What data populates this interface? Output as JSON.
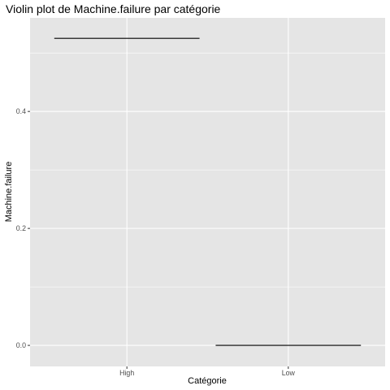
{
  "chart_data": {
    "type": "violin",
    "title": "Violin plot de Machine.failure par catégorie",
    "xlabel": "Catégorie",
    "ylabel": "Machine.failure",
    "categories": [
      "High",
      "Low"
    ],
    "values": [
      0.525,
      0.0
    ],
    "ylim": [
      -0.036,
      0.56
    ],
    "yticks": [
      0.0,
      0.2,
      0.4
    ],
    "ytick_labels": [
      "0.0",
      "0.2",
      "0.4"
    ],
    "grid": true,
    "colors": {
      "panel": "#e5e5e5",
      "grid": "#ffffff",
      "mark": "#000000",
      "tick_text": "#4d4d4d"
    }
  }
}
